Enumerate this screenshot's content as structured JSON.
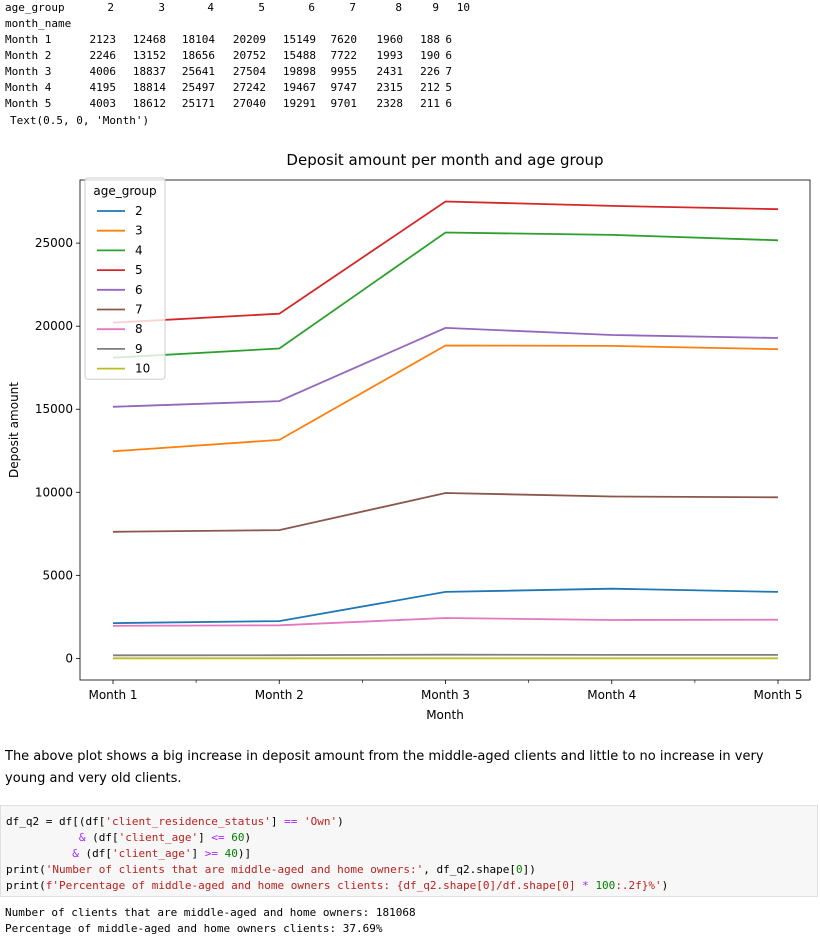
{
  "df_output": {
    "columns_label": "age_group",
    "index_label": "month_name",
    "columns": [
      "2",
      "3",
      "4",
      "5",
      "6",
      "7",
      "8",
      "9",
      "10"
    ],
    "rows": [
      {
        "label": "Month 1",
        "values": [
          "2123",
          "12468",
          "18104",
          "20209",
          "15149",
          "7620",
          "1960",
          "188",
          "6"
        ]
      },
      {
        "label": "Month 2",
        "values": [
          "2246",
          "13152",
          "18656",
          "20752",
          "15488",
          "7722",
          "1993",
          "190",
          "6"
        ]
      },
      {
        "label": "Month 3",
        "values": [
          "4006",
          "18837",
          "25641",
          "27504",
          "19898",
          "9955",
          "2431",
          "226",
          "7"
        ]
      },
      {
        "label": "Month 4",
        "values": [
          "4195",
          "18814",
          "25497",
          "27242",
          "19467",
          "9747",
          "2315",
          "212",
          "5"
        ]
      },
      {
        "label": "Month 5",
        "values": [
          "4003",
          "18612",
          "25171",
          "27040",
          "19291",
          "9701",
          "2328",
          "211",
          "6"
        ]
      }
    ],
    "text_repr": "Text(0.5, 0, 'Month')"
  },
  "chart_data": {
    "type": "line",
    "title": "Deposit amount per month and age group",
    "xlabel": "Month",
    "ylabel": "Deposit amount",
    "categories": [
      "Month 1",
      "Month 2",
      "Month 3",
      "Month 4",
      "Month 5"
    ],
    "ylim": [
      -1300,
      28800
    ],
    "yticks": [
      0,
      5000,
      10000,
      15000,
      20000,
      25000
    ],
    "legend": {
      "title": "age_group",
      "placement": "upper-left"
    },
    "series": [
      {
        "name": "2",
        "color": "#1f77b4",
        "values": [
          2123,
          2246,
          4006,
          4195,
          4003
        ]
      },
      {
        "name": "3",
        "color": "#ff7f0e",
        "values": [
          12468,
          13152,
          18837,
          18814,
          18612
        ]
      },
      {
        "name": "4",
        "color": "#2ca02c",
        "values": [
          18104,
          18656,
          25641,
          25497,
          25171
        ]
      },
      {
        "name": "5",
        "color": "#d62728",
        "values": [
          20209,
          20752,
          27504,
          27242,
          27040
        ]
      },
      {
        "name": "6",
        "color": "#9467bd",
        "values": [
          15149,
          15488,
          19898,
          19467,
          19291
        ]
      },
      {
        "name": "7",
        "color": "#8c564b",
        "values": [
          7620,
          7722,
          9955,
          9747,
          9701
        ]
      },
      {
        "name": "8",
        "color": "#e377c2",
        "values": [
          1960,
          1993,
          2431,
          2315,
          2328
        ]
      },
      {
        "name": "9",
        "color": "#7f7f7f",
        "values": [
          188,
          190,
          226,
          212,
          211
        ]
      },
      {
        "name": "10",
        "color": "#bcbd22",
        "values": [
          6,
          6,
          7,
          5,
          6
        ]
      }
    ]
  },
  "markdown": {
    "text": "The above plot shows a big increase in deposit amount from the middle-aged clients and little to no increase in very young and very old clients."
  },
  "code": {
    "line1_a": "df_q2 = df[(df[",
    "line1_b": "'client_residence_status'",
    "line1_c": "] ",
    "line1_op": "==",
    "line1_d": " ",
    "line1_e": "'Own'",
    "line1_f": ")",
    "line2_op": "&",
    "line2_a": " (df[",
    "line2_b": "'client_age'",
    "line2_c": "] ",
    "line2_op2": "<=",
    "line2_d": " ",
    "line2_num": "60",
    "line2_e": ")",
    "line3_op": "&",
    "line3_a": " (df[",
    "line3_b": "'client_age'",
    "line3_c": "] ",
    "line3_op2": ">=",
    "line3_d": " ",
    "line3_num": "40",
    "line3_e": ")]",
    "line4_a": "print(",
    "line4_b": "'Number of clients that are middle-aged and home owners:'",
    "line4_c": ", df_q2.shape[",
    "line4_num": "0",
    "line4_d": "])",
    "line5_a": "print(",
    "line5_b": "f'Percentage of middle-aged and home owners clients: {df_q2.shape[0]/df.shape[0]",
    "line5_op": " * ",
    "line5_num": "100",
    "line5_c": ":.2f}%'",
    "line5_d": ")"
  },
  "stdout": {
    "line1": "Number of clients that are middle-aged and home owners: 181068",
    "line2": "Percentage of middle-aged and home owners clients: 37.69%"
  }
}
